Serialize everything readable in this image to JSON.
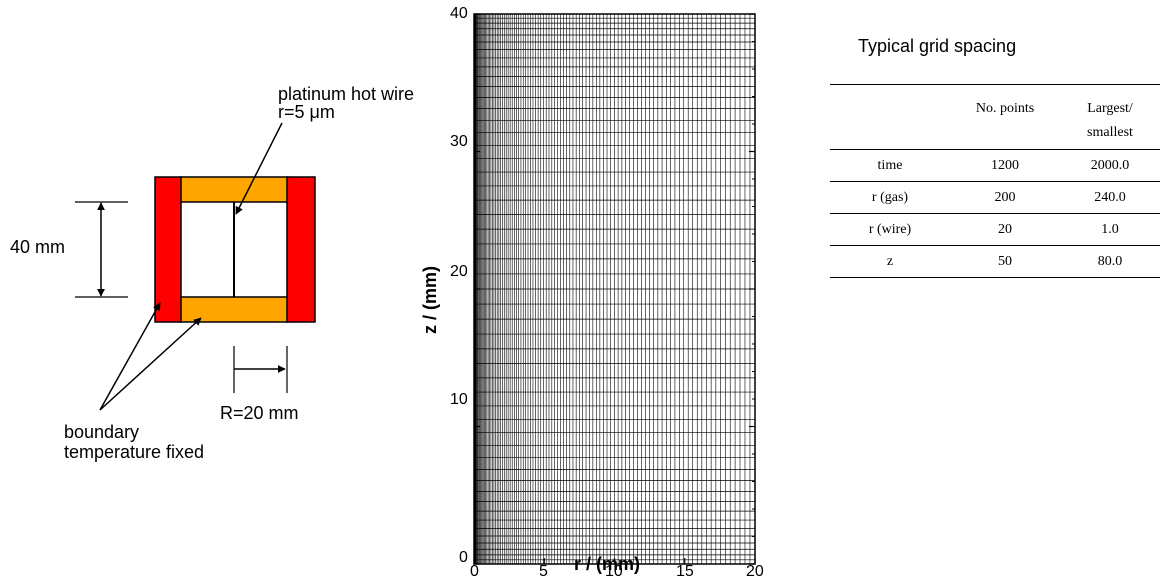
{
  "schematic": {
    "wire_label_line1": "platinum hot wire",
    "wire_label_line2": "r=5 μm",
    "height_label": "40 mm",
    "radius_label": "R=20 mm",
    "boundary_label_line1": "boundary",
    "boundary_label_line2": "temperature fixed",
    "colors": {
      "boundary_wall": "#ff0000",
      "end_cap": "#ffa500",
      "outline": "#000000"
    }
  },
  "chart_data": {
    "type": "mesh-grid",
    "xlabel": "r / (mm)",
    "ylabel": "z / (mm)",
    "xlim": [
      0,
      20
    ],
    "ylim": [
      0,
      40
    ],
    "xticks": [
      "0",
      "5",
      "10",
      "15",
      "20"
    ],
    "yticks": [
      "0",
      "10",
      "20",
      "30",
      "40"
    ],
    "radial_points": 200,
    "axial_points": 50,
    "radial_spacing": "clustered near r = 0",
    "axial_spacing": "clustered near z = 0 and z = 40"
  },
  "table": {
    "title": "Typical grid spacing",
    "headers": [
      "",
      "No. points",
      "Largest/",
      "smallest"
    ],
    "rows": [
      [
        "time",
        "1200",
        "2000.0"
      ],
      [
        "r (gas)",
        "200",
        "240.0"
      ],
      [
        "r (wire)",
        "20",
        "1.0"
      ],
      [
        "z",
        "50",
        "80.0"
      ]
    ]
  }
}
